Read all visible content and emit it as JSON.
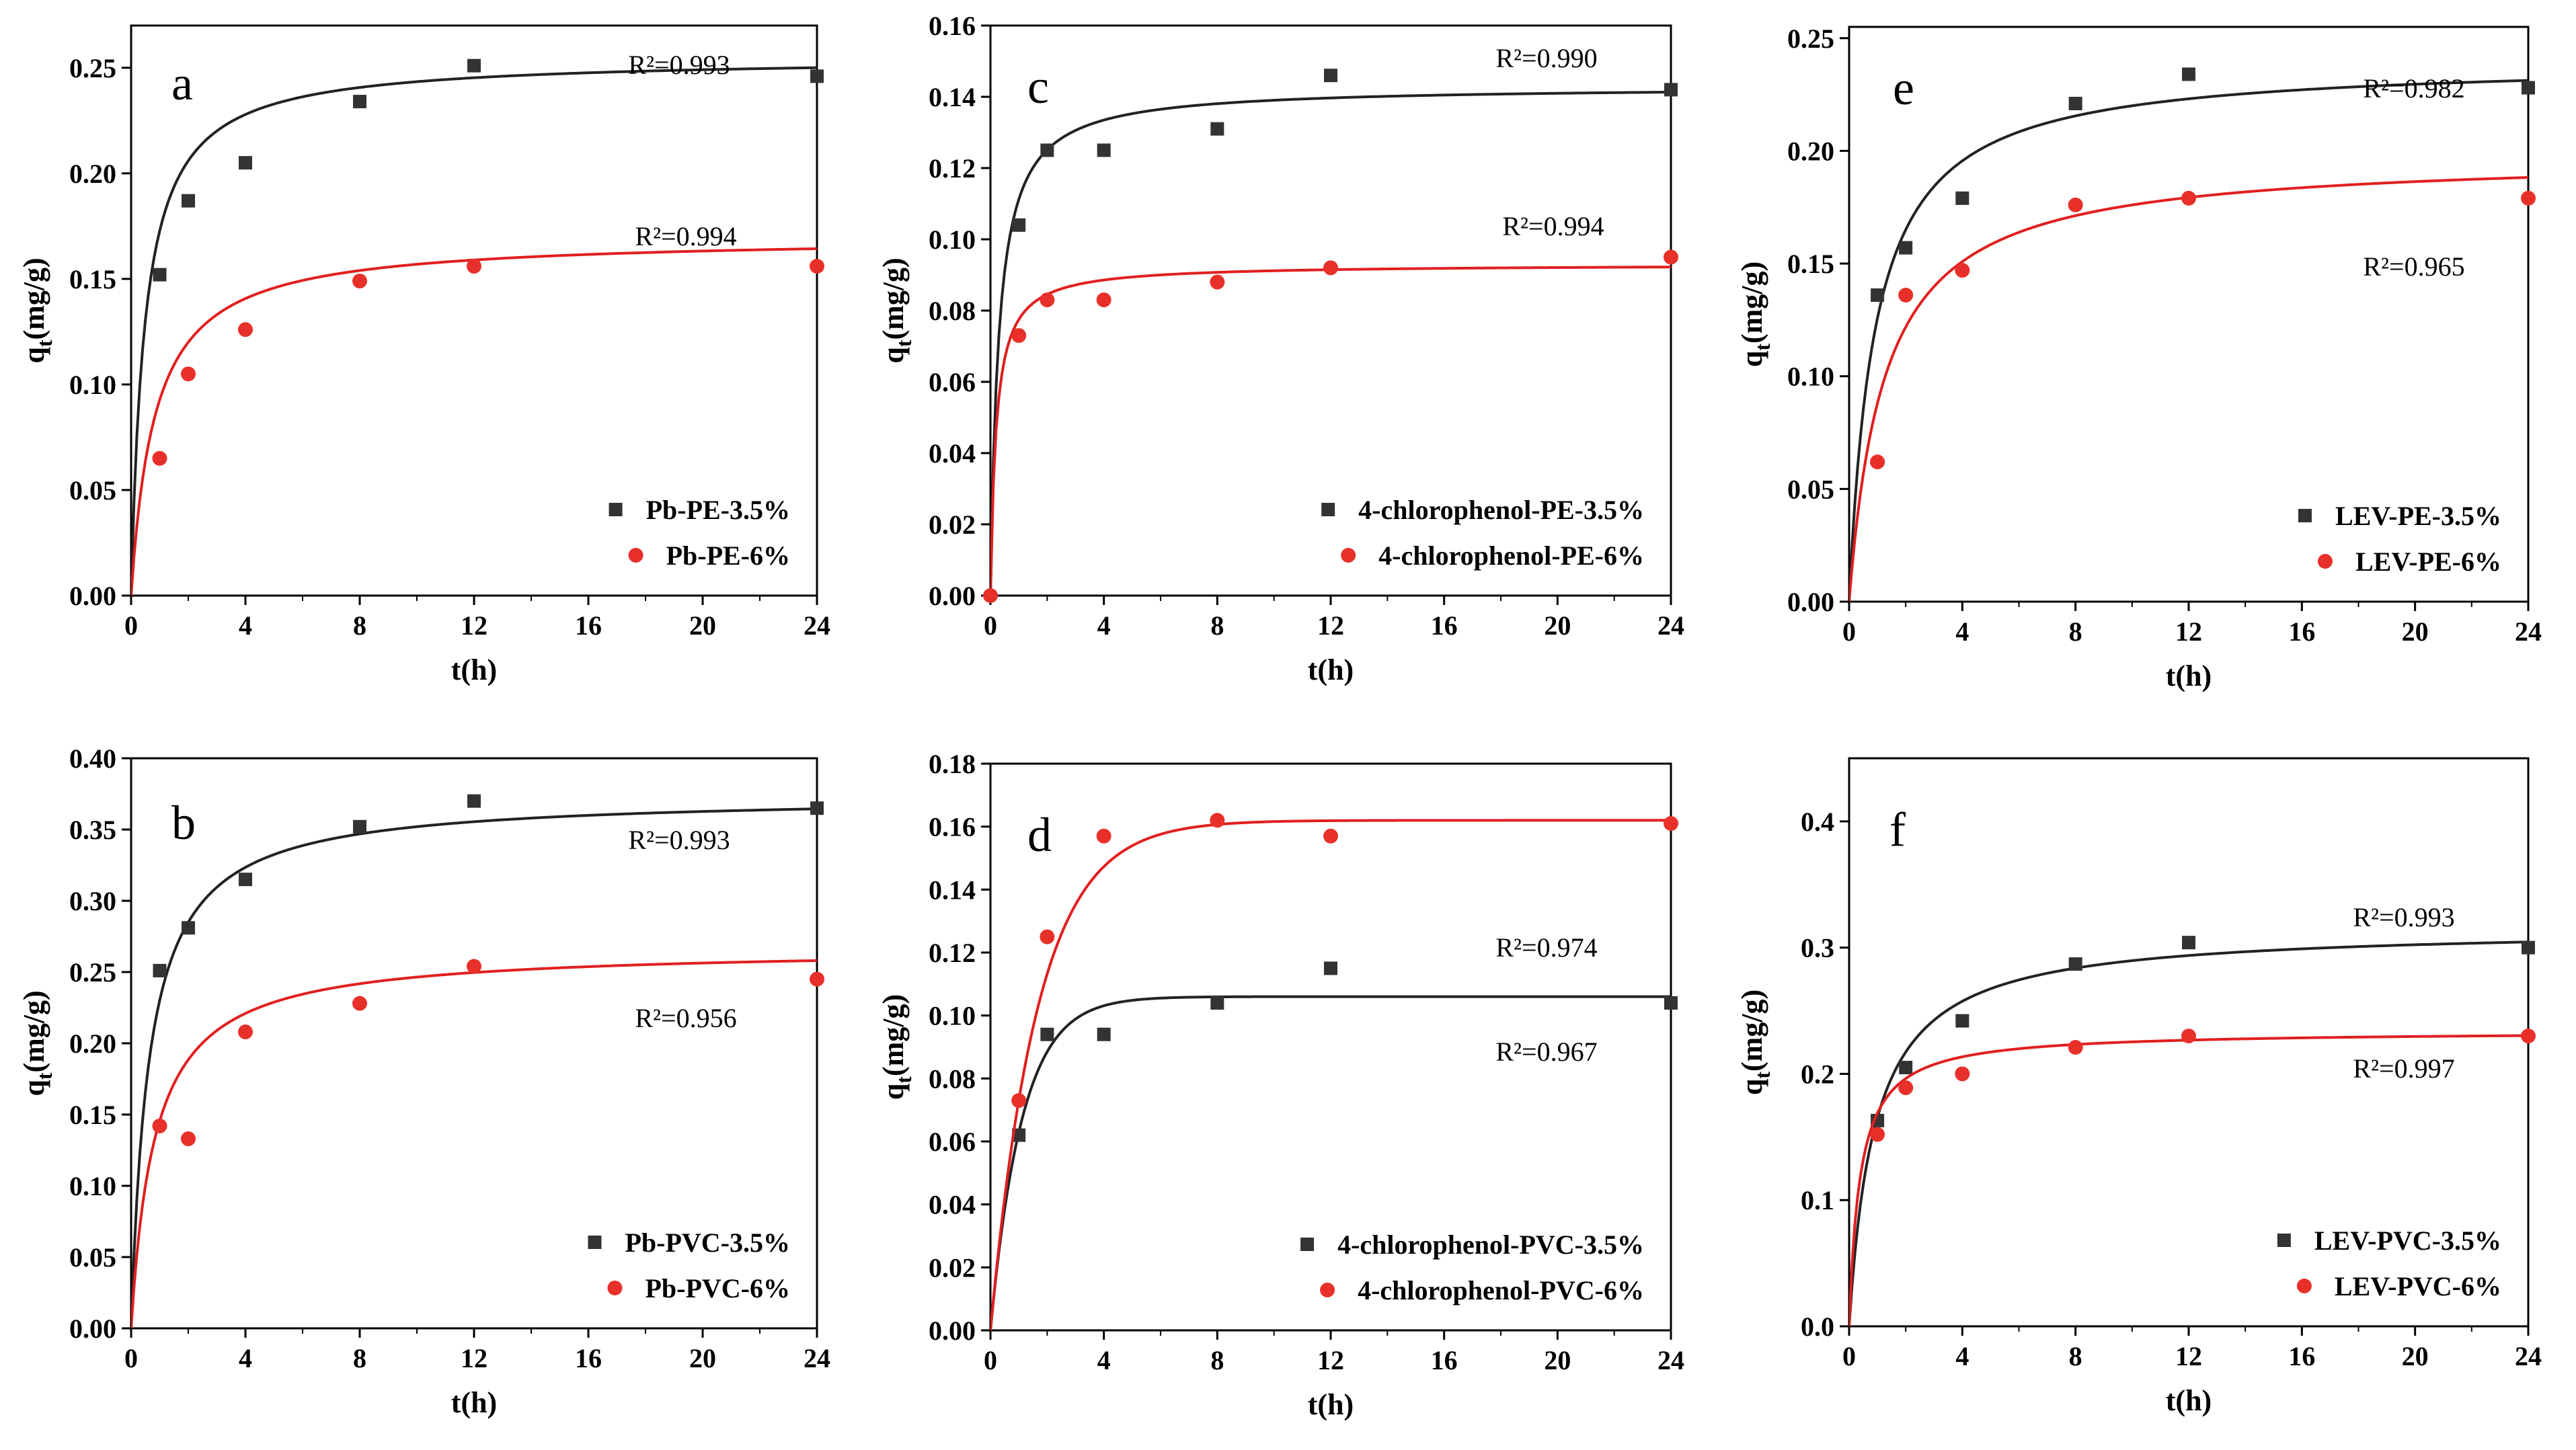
{
  "figure": {
    "colors": {
      "black_series": "#333333",
      "red_series": "#e8302a",
      "black_fit": "#222222",
      "red_fit": "#e11f1f"
    },
    "ylabel_main": "q",
    "ylabel_sub": "t",
    "ylabel_unit": "(mg/g)"
  },
  "chart_data": [
    {
      "id": "a",
      "panel_label": "a",
      "type": "scatter",
      "xlabel": "t(h)",
      "ylabel": "qt(mg/g)",
      "xlim": [
        0,
        24
      ],
      "ylim": [
        0,
        0.27
      ],
      "xticks": [
        0,
        4,
        8,
        12,
        16,
        20,
        24
      ],
      "yticks": [
        0.0,
        0.05,
        0.1,
        0.15,
        0.2,
        0.25
      ],
      "ytick_decimals": 2,
      "legend_position": "bottom-right",
      "series": [
        {
          "name": "Pb-PE-3.5%",
          "marker": "square",
          "color": "#333333",
          "x": [
            1,
            2,
            4,
            8,
            12,
            24
          ],
          "y": [
            0.152,
            0.187,
            0.205,
            0.234,
            0.251,
            0.246
          ],
          "fit": {
            "qe": 0.255,
            "k": 2.1
          },
          "r2_label": "R²=0.993"
        },
        {
          "name": "Pb-PE-6%",
          "marker": "circle",
          "color": "#e8302a",
          "x": [
            1,
            2,
            4,
            8,
            12,
            24
          ],
          "y": [
            0.065,
            0.105,
            0.126,
            0.149,
            0.156,
            0.156
          ],
          "fit": {
            "qe": 0.17,
            "k": 1.2
          },
          "r2_label": "R²=0.994"
        }
      ]
    },
    {
      "id": "c",
      "panel_label": "c",
      "type": "scatter",
      "xlabel": "t(h)",
      "ylabel": "qt(mg/g)",
      "xlim": [
        0,
        24
      ],
      "ylim": [
        0,
        0.16
      ],
      "xticks": [
        0,
        4,
        8,
        12,
        16,
        20,
        24
      ],
      "yticks": [
        0.0,
        0.02,
        0.04,
        0.06,
        0.08,
        0.1,
        0.12,
        0.14,
        0.16
      ],
      "ytick_decimals": 2,
      "legend_position": "bottom-right",
      "series": [
        {
          "name": "4-chlorophenol-PE-3.5%",
          "marker": "square",
          "color": "#333333",
          "x": [
            1,
            2,
            4,
            8,
            12,
            24
          ],
          "y": [
            0.104,
            0.125,
            0.125,
            0.131,
            0.146,
            0.142
          ],
          "fit": {
            "qe": 0.143,
            "k": 3.5
          },
          "r2_label": "R²=0.990"
        },
        {
          "name": "4-chlorophenol-PE-6%",
          "marker": "circle",
          "color": "#e8302a",
          "x": [
            0,
            1,
            2,
            4,
            8,
            12,
            24
          ],
          "y": [
            0.0,
            0.073,
            0.083,
            0.083,
            0.088,
            0.092,
            0.095
          ],
          "fit": {
            "qe": 0.093,
            "k": 5.0
          },
          "r2_label": "R²=0.994"
        }
      ]
    },
    {
      "id": "e",
      "panel_label": "e",
      "type": "scatter",
      "xlabel": "t(h)",
      "ylabel": "qt(mg/g)",
      "xlim": [
        0,
        24
      ],
      "ylim": [
        0,
        0.255
      ],
      "xticks": [
        0,
        4,
        8,
        12,
        16,
        20,
        24
      ],
      "yticks": [
        0.0,
        0.05,
        0.1,
        0.15,
        0.2,
        0.25
      ],
      "ytick_decimals": 2,
      "legend_position": "bottom-right",
      "series": [
        {
          "name": "LEV-PE-3.5%",
          "marker": "square",
          "color": "#333333",
          "x": [
            1,
            2,
            4,
            8,
            12,
            24
          ],
          "y": [
            0.136,
            0.157,
            0.179,
            0.221,
            0.234,
            0.228
          ],
          "fit": {
            "qe": 0.24,
            "k": 1.1
          },
          "r2_label": "R²=0.982"
        },
        {
          "name": "LEV-PE-6%",
          "marker": "circle",
          "color": "#e8302a",
          "x": [
            1,
            2,
            4,
            8,
            12,
            24
          ],
          "y": [
            0.062,
            0.136,
            0.147,
            0.176,
            0.179,
            0.179
          ],
          "fit": {
            "qe": 0.198,
            "k": 0.8
          },
          "r2_label": "R²=0.965"
        }
      ]
    },
    {
      "id": "b",
      "panel_label": "b",
      "type": "scatter",
      "xlabel": "t(h)",
      "ylabel": "qt(mg/g)",
      "xlim": [
        0,
        24
      ],
      "ylim": [
        0,
        0.4
      ],
      "xticks": [
        0,
        4,
        8,
        12,
        16,
        20,
        24
      ],
      "yticks": [
        0.0,
        0.05,
        0.1,
        0.15,
        0.2,
        0.25,
        0.3,
        0.35,
        0.4
      ],
      "ytick_decimals": 2,
      "legend_position": "bottom-right",
      "series": [
        {
          "name": "Pb-PVC-3.5%",
          "marker": "square",
          "color": "#333333",
          "x": [
            1,
            2,
            4,
            8,
            12,
            24
          ],
          "y": [
            0.251,
            0.281,
            0.315,
            0.352,
            0.37,
            0.365
          ],
          "fit": {
            "qe": 0.374,
            "k": 1.6
          },
          "r2_label": "R²=0.993"
        },
        {
          "name": "Pb-PVC-6%",
          "marker": "circle",
          "color": "#e8302a",
          "x": [
            1,
            2,
            4,
            8,
            12,
            24
          ],
          "y": [
            0.142,
            0.133,
            0.208,
            0.228,
            0.254,
            0.245
          ],
          "fit": {
            "qe": 0.267,
            "k": 1.2
          },
          "r2_label": "R²=0.956"
        }
      ]
    },
    {
      "id": "d",
      "panel_label": "d",
      "type": "scatter",
      "xlabel": "t(h)",
      "ylabel": "qt(mg/g)",
      "xlim": [
        0,
        24
      ],
      "ylim": [
        0,
        0.18
      ],
      "xticks": [
        0,
        4,
        8,
        12,
        16,
        20,
        24
      ],
      "yticks": [
        0.0,
        0.02,
        0.04,
        0.06,
        0.08,
        0.1,
        0.12,
        0.14,
        0.16,
        0.18
      ],
      "ytick_decimals": 2,
      "legend_position": "bottom-right",
      "series": [
        {
          "name": "4-chlorophenol-PVC-3.5%",
          "marker": "square",
          "color": "#333333",
          "x": [
            1,
            2,
            4,
            8,
            12,
            24
          ],
          "y": [
            0.062,
            0.094,
            0.094,
            0.104,
            0.115,
            0.104
          ],
          "fit": {
            "qe": 0.106,
            "k": 0.9,
            "model": "pfo"
          },
          "r2_label": "R²=0.974"
        },
        {
          "name": "4-chlorophenol-PVC-6%",
          "marker": "circle",
          "color": "#e8302a",
          "x": [
            1,
            2,
            4,
            8,
            12,
            24
          ],
          "y": [
            0.073,
            0.125,
            0.157,
            0.162,
            0.157,
            0.161
          ],
          "fit": {
            "qe": 0.162,
            "k": 0.6,
            "model": "pfo"
          },
          "r2_label": "R²=0.967"
        }
      ]
    },
    {
      "id": "f",
      "panel_label": "f",
      "type": "scatter",
      "xlabel": "t(h)",
      "ylabel": "qt(mg/g)",
      "xlim": [
        0,
        24
      ],
      "ylim": [
        0,
        0.45
      ],
      "xticks": [
        0,
        4,
        8,
        12,
        16,
        20,
        24
      ],
      "yticks": [
        0.0,
        0.1,
        0.2,
        0.3,
        0.4
      ],
      "ytick_decimals": 1,
      "legend_position": "bottom-right",
      "series": [
        {
          "name": "LEV-PVC-3.5%",
          "marker": "square",
          "color": "#333333",
          "x": [
            1,
            2,
            4,
            8,
            12,
            24
          ],
          "y": [
            0.163,
            0.205,
            0.242,
            0.287,
            0.304,
            0.3
          ],
          "fit": {
            "qe": 0.316,
            "k": 1.1
          },
          "r2_label": "R²=0.993"
        },
        {
          "name": "LEV-PVC-6%",
          "marker": "circle",
          "color": "#e8302a",
          "x": [
            1,
            2,
            4,
            8,
            12,
            24
          ],
          "y": [
            0.152,
            0.189,
            0.2,
            0.221,
            0.23,
            0.23
          ],
          "fit": {
            "qe": 0.234,
            "k": 2.6
          },
          "r2_label": "R²=0.997"
        }
      ]
    }
  ]
}
